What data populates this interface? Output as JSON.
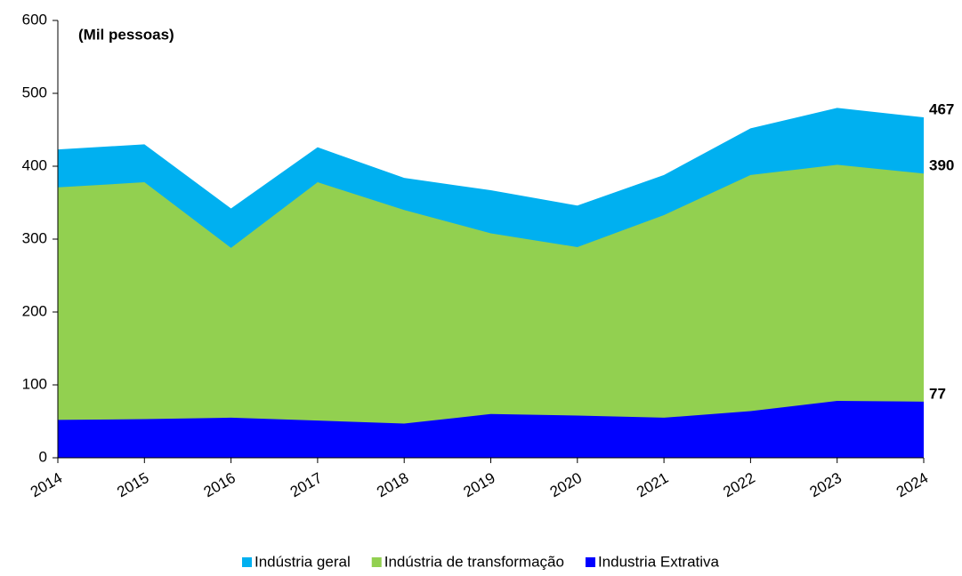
{
  "chart_data": {
    "type": "area",
    "annotation": "(Mil pessoas)",
    "categories": [
      "2014",
      "2015",
      "2016",
      "2017",
      "2018",
      "2019",
      "2020",
      "2021",
      "2022",
      "2023",
      "2024"
    ],
    "series": [
      {
        "name": "Indústria geral",
        "color": "#00b0f0",
        "values": [
          423,
          430,
          342,
          426,
          384,
          367,
          346,
          388,
          452,
          480,
          467
        ]
      },
      {
        "name": "Indústria de transformação",
        "color": "#92d050",
        "values": [
          371,
          378,
          288,
          378,
          340,
          308,
          289,
          333,
          388,
          402,
          390
        ]
      },
      {
        "name": "Industria Extrativa",
        "color": "#0000ff",
        "values": [
          52,
          53,
          55,
          51,
          47,
          60,
          58,
          55,
          64,
          78,
          77
        ]
      }
    ],
    "ylim": [
      0,
      600
    ],
    "yticks": [
      0,
      100,
      200,
      300,
      400,
      500,
      600
    ],
    "grid": false,
    "legend": "bottom"
  }
}
